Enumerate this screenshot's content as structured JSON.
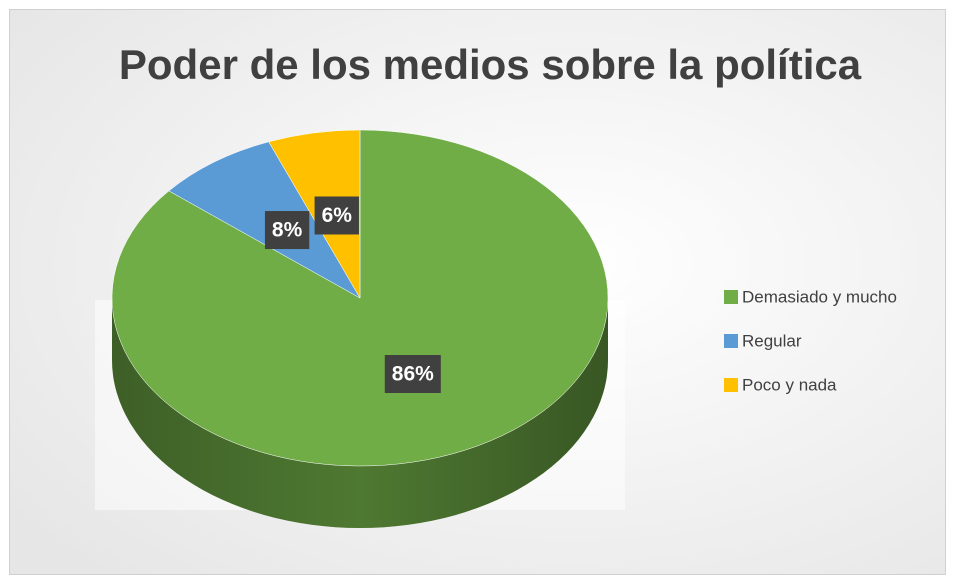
{
  "chart_data": {
    "type": "pie",
    "title": "Poder de los medios sobre la política",
    "categories": [
      "Demasiado y mucho",
      "Regular",
      "Poco y nada"
    ],
    "values": [
      86,
      8,
      6
    ],
    "value_labels": [
      "86%",
      "8%",
      "6%"
    ],
    "colors": [
      "#70ad47",
      "#5b9bd5",
      "#ffc000"
    ],
    "legend": "right"
  }
}
